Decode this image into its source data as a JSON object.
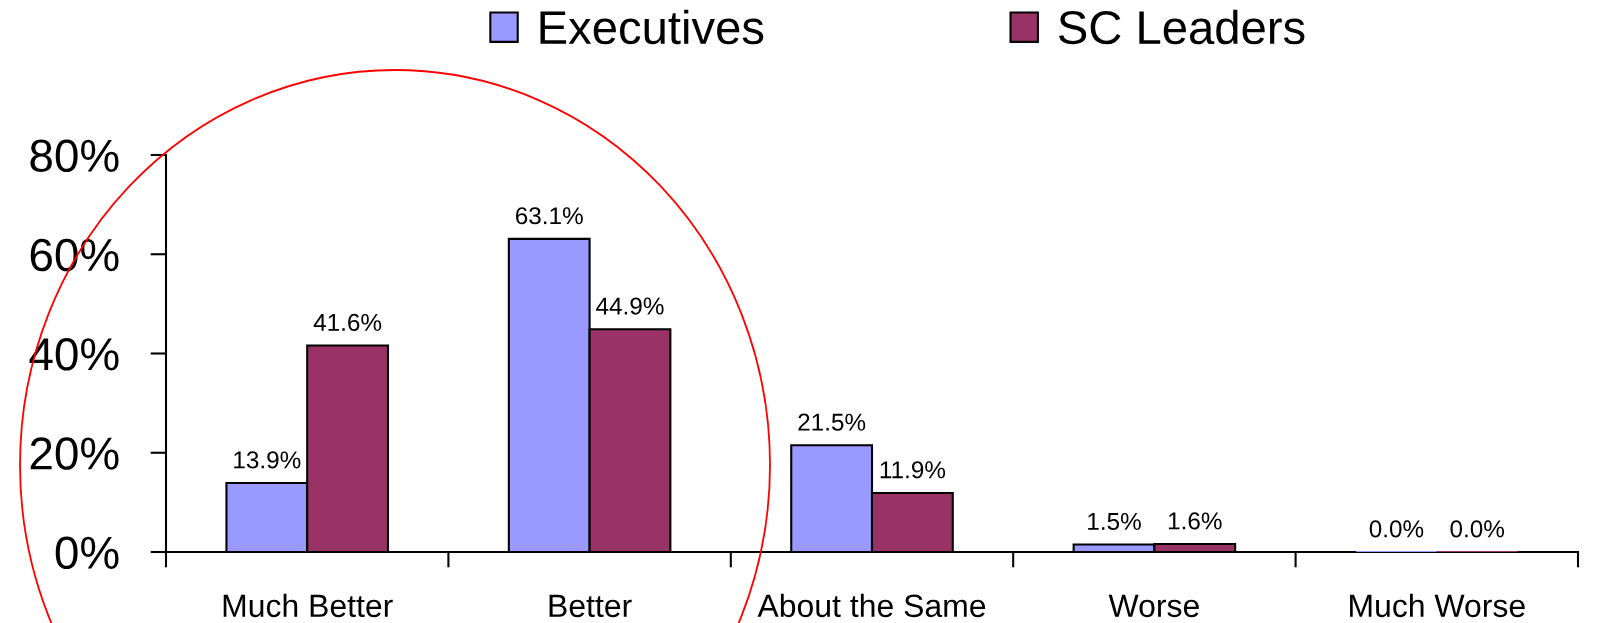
{
  "chart_data": {
    "type": "bar",
    "categories": [
      "Much Better",
      "Better",
      "About the Same",
      "Worse",
      "Much Worse"
    ],
    "series": [
      {
        "name": "Executives",
        "color": "#9999ff",
        "values": [
          13.9,
          63.1,
          21.5,
          1.5,
          0.0
        ],
        "value_labels": [
          "13.9%",
          "63.1%",
          "21.5%",
          "1.5%",
          "0.0%"
        ]
      },
      {
        "name": "SC Leaders",
        "color": "#993366",
        "values": [
          41.6,
          44.9,
          11.9,
          1.6,
          0.0
        ],
        "value_labels": [
          "41.6%",
          "44.9%",
          "11.9%",
          "1.6%",
          "0.0%"
        ]
      }
    ],
    "ylim": [
      0,
      80
    ],
    "yticks": [
      {
        "value": 0,
        "label": "0%"
      },
      {
        "value": 20,
        "label": "20%"
      },
      {
        "value": 40,
        "label": "40%"
      },
      {
        "value": 60,
        "label": "60%"
      },
      {
        "value": 80,
        "label": "80%"
      }
    ],
    "grid": false,
    "legend": "top"
  }
}
